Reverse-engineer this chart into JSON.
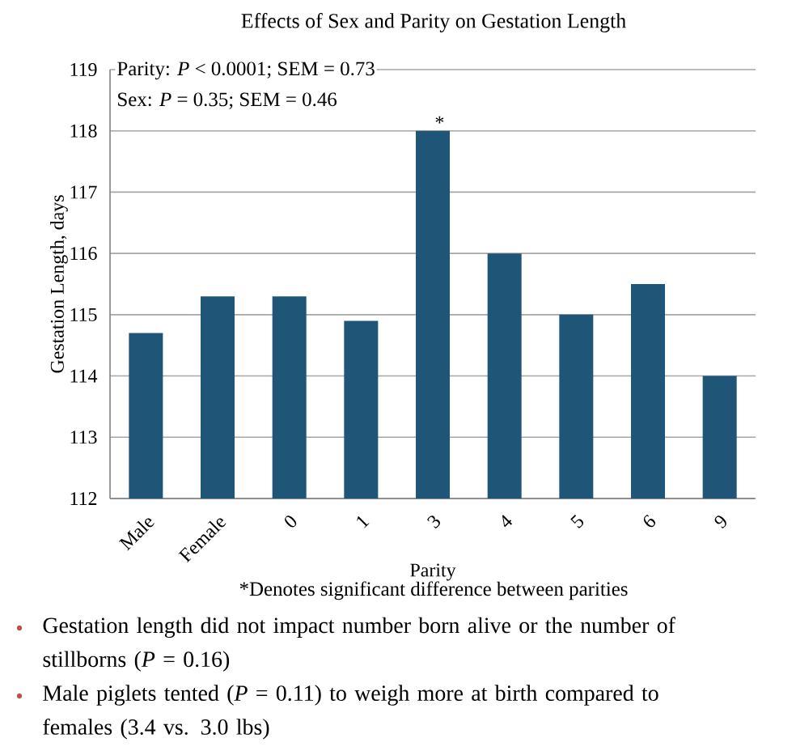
{
  "chart_data": {
    "type": "bar",
    "title": "Effects of Sex and Parity on Gestation Length",
    "xlabel": "Parity",
    "ylabel": "Gestation Length, days",
    "categories": [
      "Male",
      "Female",
      "0",
      "1",
      "3",
      "4",
      "5",
      "6",
      "9"
    ],
    "values": [
      114.7,
      115.3,
      115.3,
      114.9,
      118.0,
      116.0,
      115.0,
      115.5,
      114.0
    ],
    "color": "#1f5577",
    "ylim": [
      112,
      119
    ],
    "yticks": [
      112,
      113,
      114,
      115,
      116,
      117,
      118,
      119
    ],
    "grid": "y",
    "annotations": [
      "Parity: *P* < 0.0001; SEM = 0.73",
      "Sex: *P* = 0.35; SEM = 0.46",
      {
        "text": "*",
        "x": "3",
        "y": 118
      },
      "*Denotes significant difference between parities",
      "Gestation length did not impact number born alive or the number of stillborns (*P* = 0.16)",
      "Male piglets tented (*P* = 0.11) to weigh more at birth compared to females (3.4 vs. 3.0 lbs)"
    ]
  }
}
